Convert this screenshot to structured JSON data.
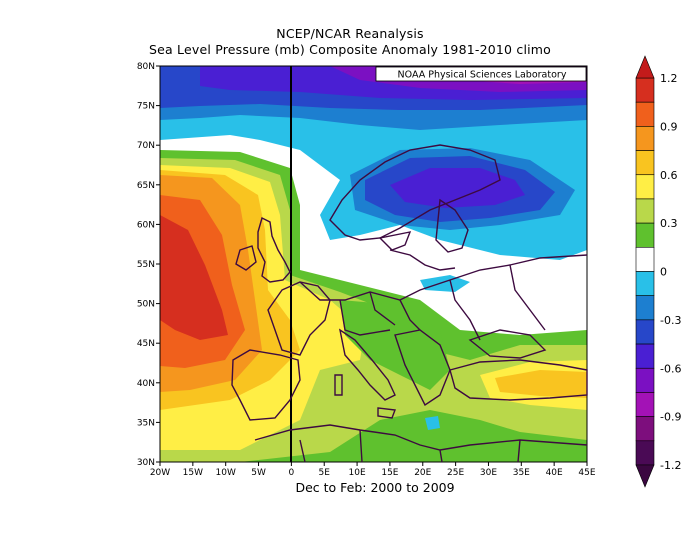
{
  "title": "NCEP/NCAR Reanalysis",
  "subtitle": "Sea Level Pressure (mb) Composite Anomaly 1981-2010 climo",
  "attribution": "NOAA Physical Sciences Laboratory",
  "period_label": "Dec to Feb: 2000 to 2009",
  "map": {
    "lon_range": [
      -20,
      45
    ],
    "lat_range": [
      30,
      80
    ],
    "lon_ticks": [
      "20W",
      "15W",
      "10W",
      "5W",
      "0",
      "5E",
      "10E",
      "15E",
      "20E",
      "25E",
      "30E",
      "35E",
      "40E",
      "45E"
    ],
    "lat_ticks": [
      "30N",
      "35N",
      "40N",
      "45N",
      "50N",
      "55N",
      "60N",
      "65N",
      "70N",
      "75N",
      "80N"
    ]
  },
  "colorbar": {
    "labels": [
      "1.2",
      "0.9",
      "0.6",
      "0.3",
      "0",
      "-0.3",
      "-0.6",
      "-0.9",
      "-1.2"
    ],
    "colors": [
      "#d62f1f",
      "#f0601c",
      "#f5961e",
      "#f9c420",
      "#ffee45",
      "#b9d84a",
      "#5fc12e",
      "#ffffff",
      "#29c0e8",
      "#1d7fd0",
      "#2747c9",
      "#4a1fd3",
      "#7b10c2",
      "#a312b6",
      "#7d0e7d",
      "#4a0a55"
    ],
    "max_arrow_color": "#c31b1b",
    "min_arrow_color": "#3a0740"
  }
}
